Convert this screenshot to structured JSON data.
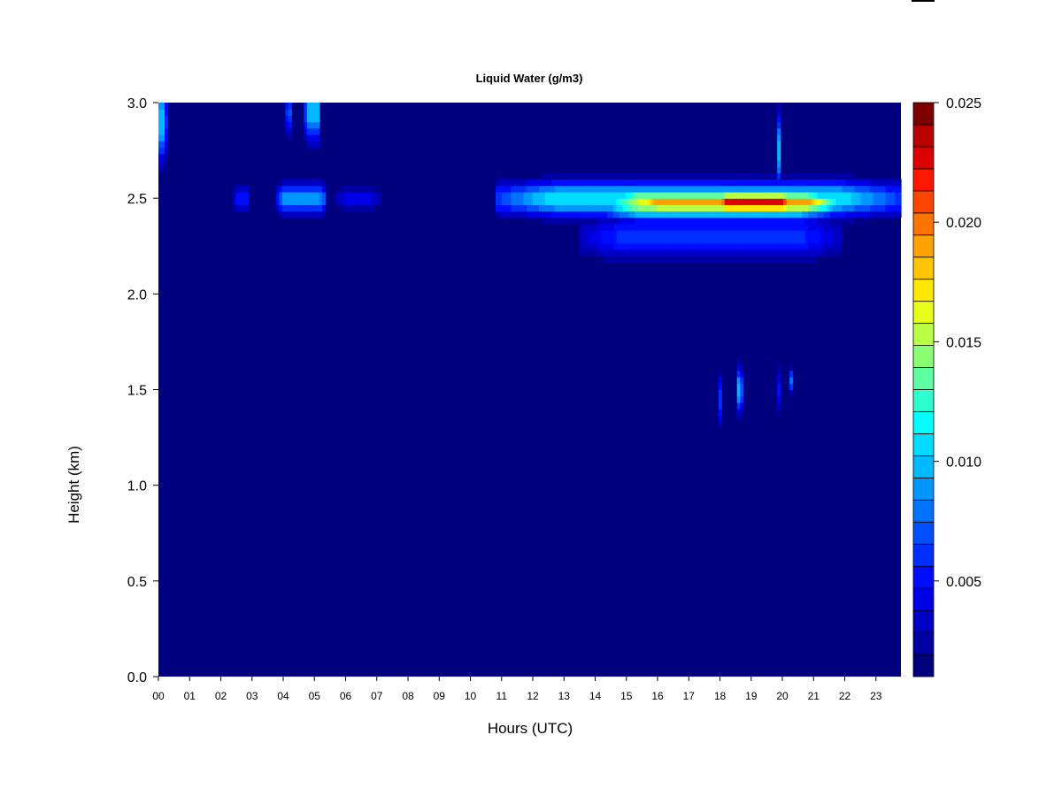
{
  "chart_data": {
    "type": "heatmap",
    "title": "Liquid Water (g/m3)",
    "xlabel": "Hours (UTC)",
    "ylabel": "Height (km)",
    "x_ticks": [
      "00",
      "01",
      "02",
      "03",
      "04",
      "05",
      "06",
      "07",
      "08",
      "09",
      "10",
      "11",
      "12",
      "13",
      "14",
      "15",
      "16",
      "17",
      "18",
      "19",
      "20",
      "21",
      "22",
      "23"
    ],
    "y_ticks": [
      "0.0",
      "0.5",
      "1.0",
      "1.5",
      "2.0",
      "2.5",
      "3.0"
    ],
    "xlim": [
      0,
      23.8
    ],
    "ylim": [
      0,
      3.0
    ],
    "colorbar": {
      "ticks": [
        "0.005",
        "0.010",
        "0.015",
        "0.020",
        "0.025"
      ],
      "min": 0.001,
      "max": 0.025,
      "levels": 24,
      "colors": [
        "#00007F",
        "#0000A2",
        "#0000C5",
        "#0000E8",
        "#000CFF",
        "#002EFF",
        "#0050FF",
        "#0073FF",
        "#0096FF",
        "#00B9FF",
        "#00DCFF",
        "#00FFFF",
        "#2EFFD0",
        "#5DFFA2",
        "#8BFF73",
        "#B9FF45",
        "#E8FF17",
        "#FFE800",
        "#FFC500",
        "#FFA200",
        "#FF7300",
        "#FF4500",
        "#FF1700",
        "#DC0000",
        "#B90000",
        "#7F0000"
      ]
    },
    "background_value": 0.0,
    "features": [
      {
        "t0": 10.8,
        "t1": 23.8,
        "h": 2.5,
        "sh": 0.09,
        "peak": 0.0115
      },
      {
        "t0": 14.3,
        "t1": 21.6,
        "h": 2.48,
        "sh": 0.09,
        "peak": 0.016
      },
      {
        "t0": 15.0,
        "t1": 21.8,
        "h": 2.48,
        "sh": 0.06,
        "peak": 0.0195
      },
      {
        "t0": 17.8,
        "t1": 20.4,
        "h": 2.48,
        "sh": 0.06,
        "peak": 0.0225
      },
      {
        "t0": 13.5,
        "t1": 21.9,
        "h": 2.3,
        "sh": 0.12,
        "peak": 0.006
      },
      {
        "t0": 3.8,
        "t1": 5.4,
        "h": 2.5,
        "sh": 0.08,
        "peak": 0.0095
      },
      {
        "t0": 2.4,
        "t1": 2.9,
        "h": 2.5,
        "sh": 0.08,
        "peak": 0.005
      },
      {
        "t0": 5.7,
        "t1": 7.1,
        "h": 2.5,
        "sh": 0.07,
        "peak": 0.004
      },
      {
        "t0": 0.0,
        "t1": 0.25,
        "h": 2.9,
        "sh": 0.2,
        "peak": 0.01
      },
      {
        "t0": 4.7,
        "t1": 5.2,
        "h": 2.95,
        "sh": 0.15,
        "peak": 0.01
      },
      {
        "t0": 4.1,
        "t1": 4.25,
        "h": 2.95,
        "sh": 0.12,
        "peak": 0.007
      },
      {
        "t0": 18.55,
        "t1": 18.7,
        "h": 1.5,
        "sh": 0.12,
        "peak": 0.01
      },
      {
        "t0": 17.95,
        "t1": 18.05,
        "h": 1.45,
        "sh": 0.15,
        "peak": 0.006
      },
      {
        "t0": 19.85,
        "t1": 19.95,
        "h": 1.5,
        "sh": 0.12,
        "peak": 0.005
      },
      {
        "t0": 20.25,
        "t1": 20.35,
        "h": 1.55,
        "sh": 0.06,
        "peak": 0.008
      },
      {
        "t0": 19.8,
        "t1": 19.9,
        "h": 2.75,
        "sh": 0.2,
        "peak": 0.01
      }
    ]
  }
}
